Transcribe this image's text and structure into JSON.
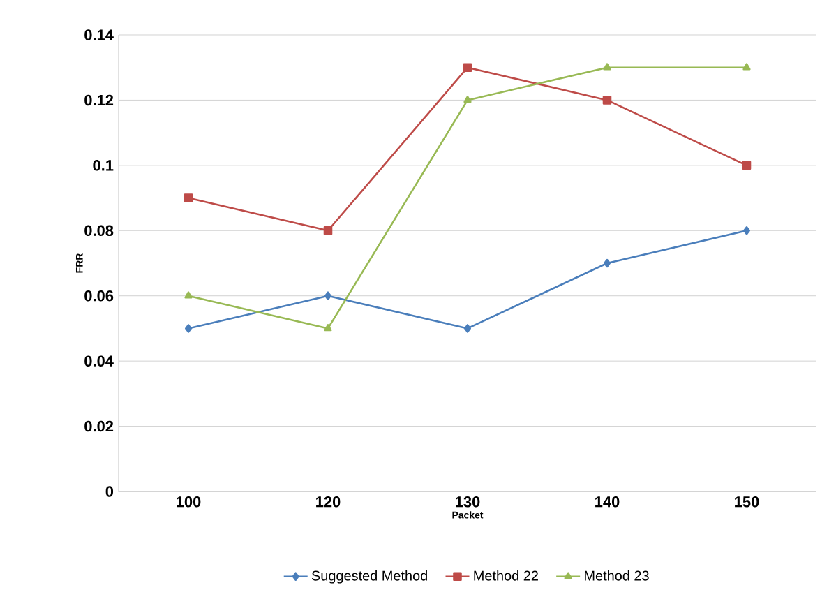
{
  "chart_data": {
    "type": "line",
    "xlabel": "Packet",
    "ylabel": "FRR",
    "categories": [
      "100",
      "120",
      "130",
      "140",
      "150"
    ],
    "series": [
      {
        "name": "Suggested Method",
        "color": "#4a7ebb",
        "marker": "diamond",
        "values": [
          0.05,
          0.06,
          0.05,
          0.07,
          0.08
        ]
      },
      {
        "name": "Method 22",
        "color": "#be4b48",
        "marker": "square",
        "values": [
          0.09,
          0.08,
          0.13,
          0.12,
          0.1
        ]
      },
      {
        "name": "Method 23",
        "color": "#98b954",
        "marker": "triangle",
        "values": [
          0.06,
          0.05,
          0.12,
          0.13,
          0.13
        ]
      }
    ],
    "ylim": [
      0,
      0.14
    ],
    "yticks": [
      0,
      0.02,
      0.04,
      0.06,
      0.08,
      0.1,
      0.12,
      0.14
    ],
    "grid": "y",
    "legend": "bottom",
    "line_style": "solid"
  }
}
